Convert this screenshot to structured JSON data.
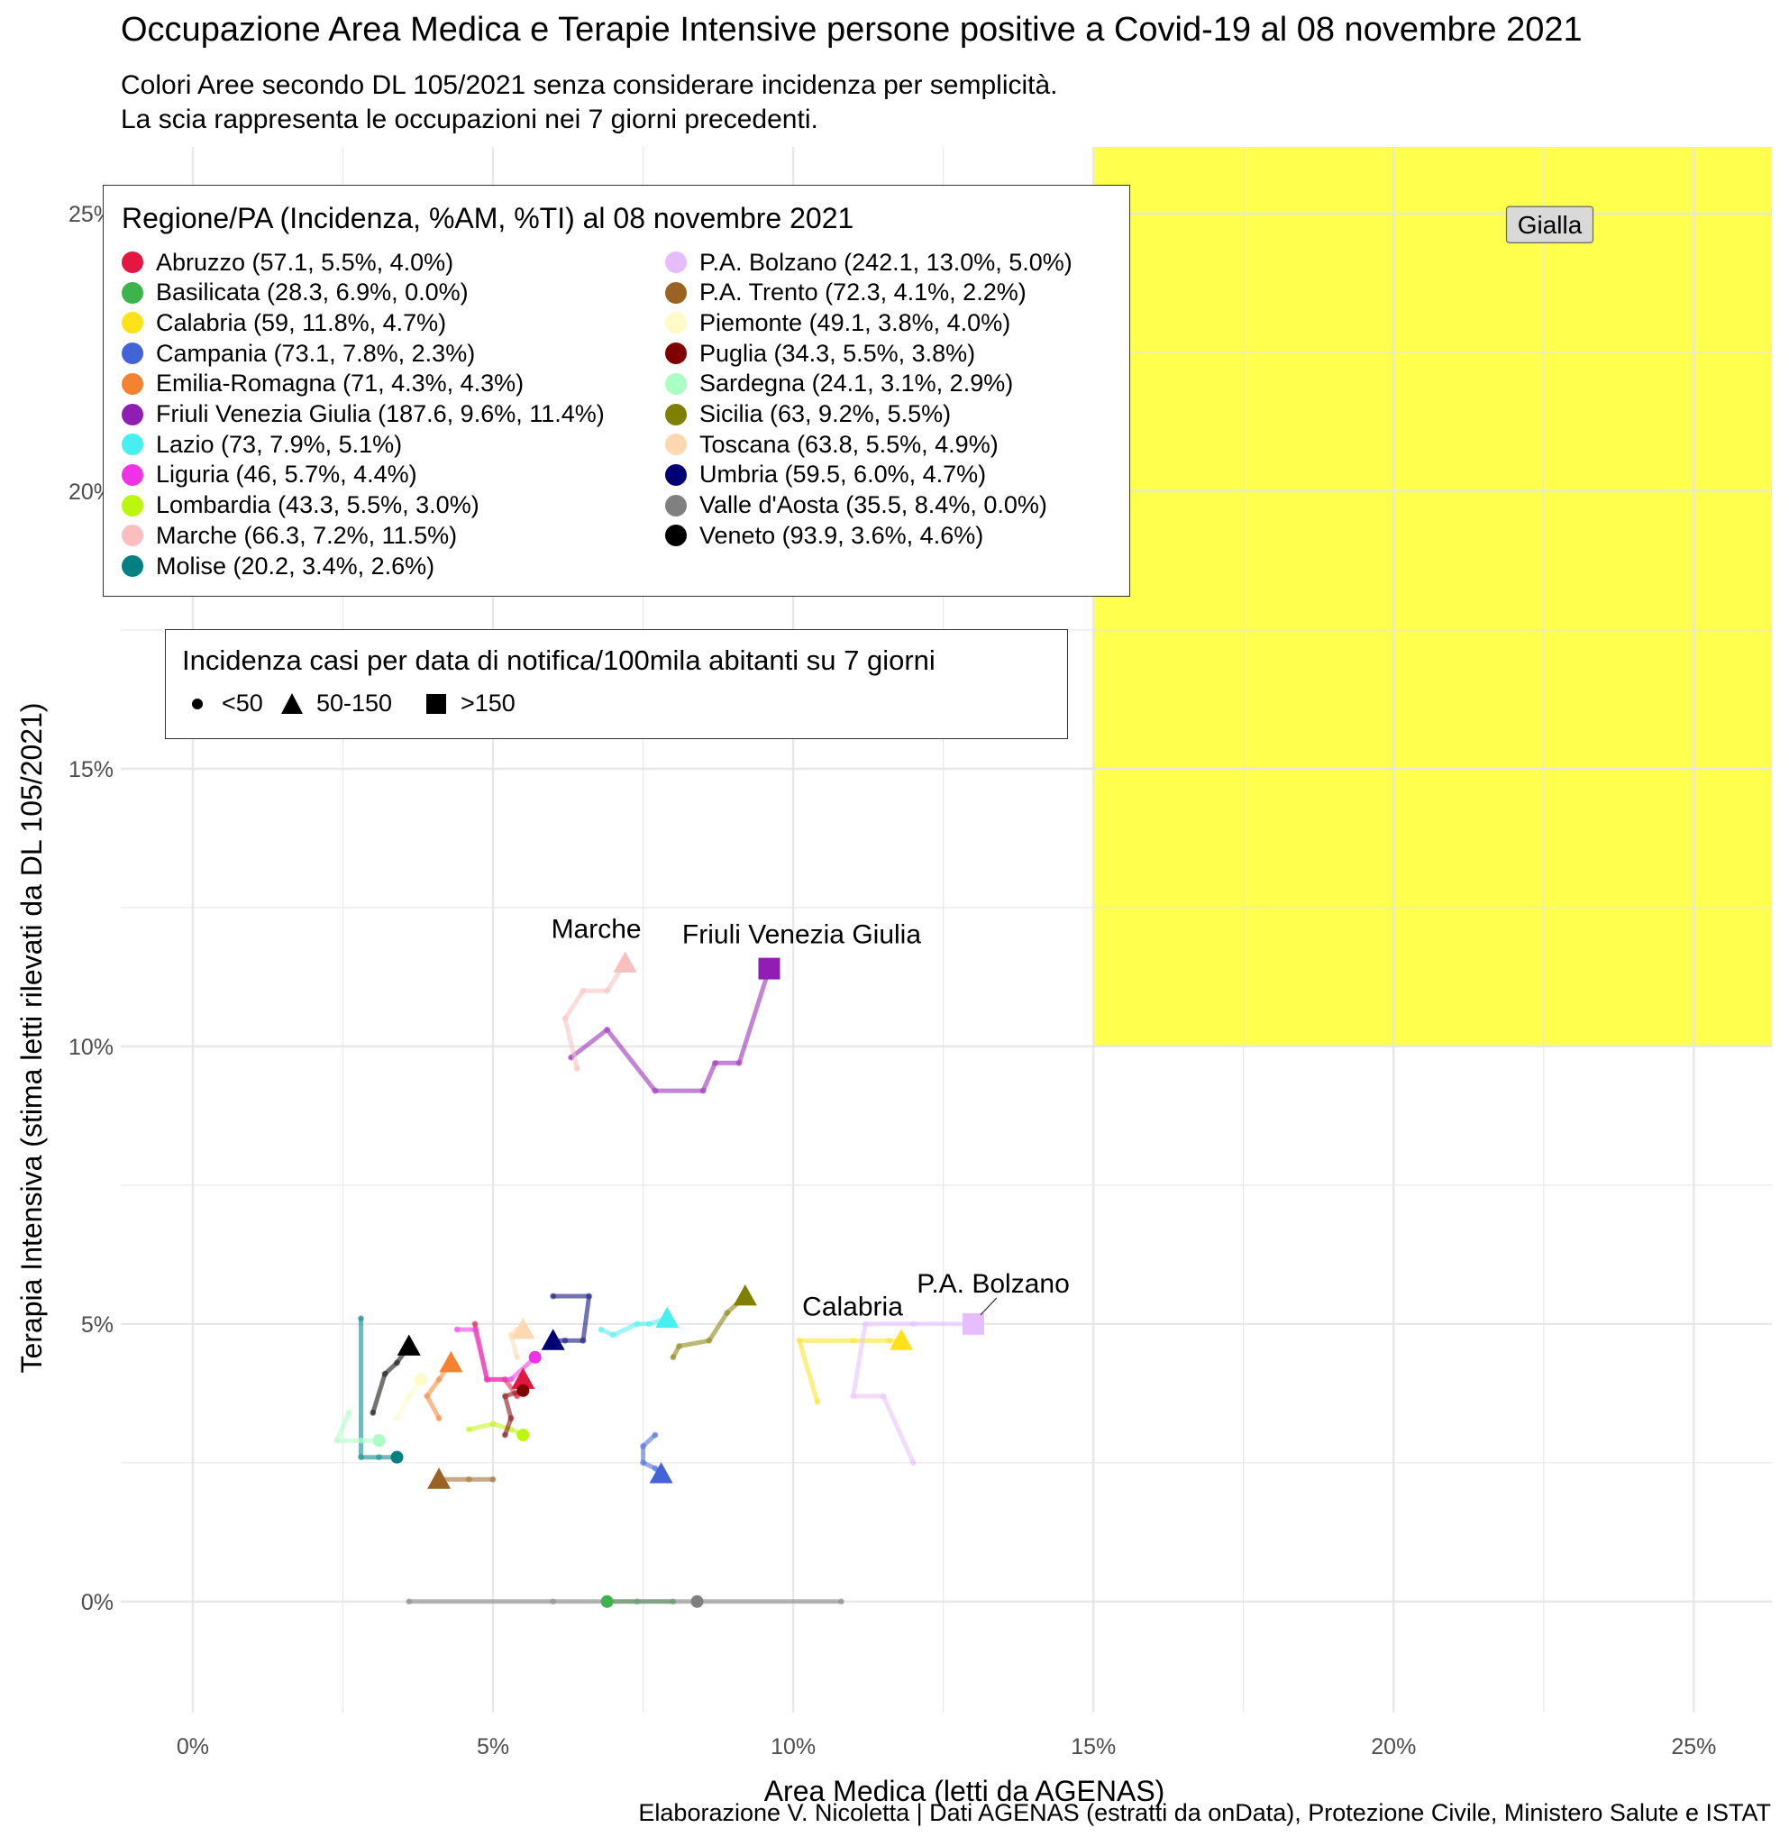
{
  "title": "Occupazione Area Medica e Terapie Intensive persone positive a Covid-19 al 08 novembre 2021",
  "subtitle_lines": [
    "Colori Aree secondo DL 105/2021 senza considerare incidenza per semplicità.",
    "La scia rappresenta le occupazioni nei 7 giorni precedenti."
  ],
  "caption": "Elaborazione V. Nicoletta | Dati AGENAS (estratti da onData), Protezione Civile, Ministero Salute e ISTAT",
  "colors": {
    "zone_yellow": "#FFFF4D",
    "grid": "#E6E6E6"
  },
  "chart_data": {
    "type": "scatter",
    "xlabel": "Area Medica (letti da AGENAS)",
    "ylabel": "Terapia Intensiva (stima letti rilevati da DL 105/2021)",
    "xlim": [
      -1.2,
      26.3
    ],
    "ylim": [
      -2.0,
      26.2
    ],
    "x_ticks": [
      0,
      5,
      10,
      15,
      20,
      25
    ],
    "y_ticks": [
      0,
      5,
      10,
      15,
      20,
      25
    ],
    "x_tick_labels": [
      "0%",
      "5%",
      "10%",
      "15%",
      "20%",
      "25%"
    ],
    "y_tick_labels": [
      "0%",
      "5%",
      "10%",
      "15%",
      "20%",
      "25%"
    ],
    "zone": {
      "label": "Gialla",
      "x_from": 15,
      "y_from": 10
    },
    "legend_title": "Regione/PA (Incidenza, %AM, %TI) al 08 novembre 2021",
    "shape_legend_title": "Incidenza casi per data di notifica/100mila abitanti su 7 giorni",
    "shape_legend": [
      {
        "shape": "circle",
        "label": "<50"
      },
      {
        "shape": "triangle",
        "label": "50-150"
      },
      {
        "shape": "square",
        "label": ">150"
      }
    ],
    "series": [
      {
        "name": "Abruzzo",
        "legend": "Abruzzo (57.1, 5.5%, 4.0%)",
        "color": "#E3173F",
        "shape": "triangle",
        "x": 5.5,
        "y": 4.0,
        "trail": [
          [
            4.7,
            5.0
          ],
          [
            4.9,
            4.0
          ],
          [
            5.2,
            4.0
          ],
          [
            5.4,
            3.7
          ],
          [
            5.5,
            4.0
          ]
        ]
      },
      {
        "name": "Basilicata",
        "legend": "Basilicata (28.3, 6.9%, 0.0%)",
        "color": "#3CB44B",
        "shape": "circle",
        "x": 6.9,
        "y": 0.0,
        "trail": [
          [
            8.0,
            0.0
          ],
          [
            7.4,
            0.0
          ],
          [
            6.9,
            0.0
          ]
        ]
      },
      {
        "name": "Calabria",
        "legend": "Calabria (59, 11.8%, 4.7%)",
        "color": "#FFE119",
        "shape": "triangle",
        "x": 11.8,
        "y": 4.7,
        "trail": [
          [
            10.4,
            3.6
          ],
          [
            10.1,
            4.7
          ],
          [
            11.0,
            4.7
          ],
          [
            11.6,
            4.7
          ],
          [
            11.8,
            4.7
          ]
        ]
      },
      {
        "name": "Campania",
        "legend": "Campania (73.1, 7.8%, 2.3%)",
        "color": "#4363D8",
        "shape": "triangle",
        "x": 7.8,
        "y": 2.3,
        "trail": [
          [
            7.7,
            3.0
          ],
          [
            7.5,
            2.8
          ],
          [
            7.5,
            2.5
          ],
          [
            7.7,
            2.4
          ],
          [
            7.8,
            2.3
          ]
        ]
      },
      {
        "name": "Emilia-Romagna",
        "legend": "Emilia-Romagna (71, 4.3%, 4.3%)",
        "color": "#F58231",
        "shape": "triangle",
        "x": 4.3,
        "y": 4.3,
        "trail": [
          [
            4.1,
            3.3
          ],
          [
            3.9,
            3.7
          ],
          [
            4.1,
            4.0
          ],
          [
            4.3,
            4.3
          ]
        ]
      },
      {
        "name": "Friuli Venezia Giulia",
        "legend": "Friuli Venezia Giulia (187.6, 9.6%, 11.4%)",
        "color": "#911EB4",
        "shape": "square",
        "x": 9.6,
        "y": 11.4,
        "trail": [
          [
            6.3,
            9.8
          ],
          [
            6.9,
            10.3
          ],
          [
            7.7,
            9.2
          ],
          [
            8.5,
            9.2
          ],
          [
            8.7,
            9.7
          ],
          [
            9.1,
            9.7
          ],
          [
            9.6,
            11.4
          ]
        ]
      },
      {
        "name": "Lazio",
        "legend": "Lazio (73, 7.9%, 5.1%)",
        "color": "#46F0F0",
        "shape": "triangle",
        "x": 7.9,
        "y": 5.1,
        "trail": [
          [
            6.8,
            4.9
          ],
          [
            7.0,
            4.8
          ],
          [
            7.4,
            5.0
          ],
          [
            7.6,
            5.0
          ],
          [
            7.9,
            5.1
          ]
        ]
      },
      {
        "name": "Liguria",
        "legend": "Liguria (46, 5.7%, 4.4%)",
        "color": "#F032E6",
        "shape": "circle",
        "x": 5.7,
        "y": 4.4,
        "trail": [
          [
            4.4,
            4.9
          ],
          [
            4.7,
            4.9
          ],
          [
            4.9,
            4.0
          ],
          [
            5.3,
            4.0
          ],
          [
            5.7,
            4.4
          ]
        ]
      },
      {
        "name": "Lombardia",
        "legend": "Lombardia (43.3, 5.5%, 3.0%)",
        "color": "#BCF60C",
        "shape": "circle",
        "x": 5.5,
        "y": 3.0,
        "trail": [
          [
            4.6,
            3.1
          ],
          [
            5.0,
            3.2
          ],
          [
            5.3,
            3.1
          ],
          [
            5.5,
            3.0
          ]
        ]
      },
      {
        "name": "Marche",
        "legend": "Marche (66.3, 7.2%, 11.5%)",
        "color": "#FABEBE",
        "shape": "triangle",
        "x": 7.2,
        "y": 11.5,
        "trail": [
          [
            6.4,
            9.6
          ],
          [
            6.2,
            10.5
          ],
          [
            6.5,
            11.0
          ],
          [
            6.9,
            11.0
          ],
          [
            7.2,
            11.5
          ]
        ]
      },
      {
        "name": "Molise",
        "legend": "Molise (20.2, 3.4%, 2.6%)",
        "color": "#008080",
        "shape": "circle",
        "x": 3.4,
        "y": 2.6,
        "trail": [
          [
            2.8,
            5.1
          ],
          [
            2.8,
            2.6
          ],
          [
            3.1,
            2.6
          ],
          [
            3.4,
            2.6
          ]
        ]
      },
      {
        "name": "P.A. Bolzano",
        "legend": "P.A. Bolzano (242.1, 13.0%, 5.0%)",
        "color": "#E6BEFF",
        "shape": "square",
        "x": 13.0,
        "y": 5.0,
        "trail": [
          [
            12.0,
            2.5
          ],
          [
            11.5,
            3.7
          ],
          [
            11.0,
            3.7
          ],
          [
            11.2,
            5.0
          ],
          [
            12.0,
            5.0
          ],
          [
            13.0,
            5.0
          ]
        ]
      },
      {
        "name": "P.A. Trento",
        "legend": "P.A. Trento (72.3, 4.1%, 2.2%)",
        "color": "#9A6324",
        "shape": "triangle",
        "x": 4.1,
        "y": 2.2,
        "trail": [
          [
            5.0,
            2.2
          ],
          [
            4.6,
            2.2
          ],
          [
            4.1,
            2.2
          ]
        ]
      },
      {
        "name": "Piemonte",
        "legend": "Piemonte (49.1, 3.8%, 4.0%)",
        "color": "#FFFAC8",
        "shape": "circle",
        "x": 3.8,
        "y": 4.0,
        "trail": [
          [
            3.4,
            3.3
          ],
          [
            3.6,
            3.7
          ],
          [
            3.8,
            4.0
          ]
        ]
      },
      {
        "name": "Puglia",
        "legend": "Puglia (34.3, 5.5%, 3.8%)",
        "color": "#800000",
        "shape": "circle",
        "x": 5.5,
        "y": 3.8,
        "trail": [
          [
            5.2,
            3.0
          ],
          [
            5.3,
            3.3
          ],
          [
            5.2,
            3.7
          ],
          [
            5.5,
            3.8
          ]
        ]
      },
      {
        "name": "Sardegna",
        "legend": "Sardegna (24.1, 3.1%, 2.9%)",
        "color": "#AAFFC3",
        "shape": "circle",
        "x": 3.1,
        "y": 2.9,
        "trail": [
          [
            2.6,
            3.4
          ],
          [
            2.4,
            2.9
          ],
          [
            2.8,
            2.9
          ],
          [
            3.1,
            2.9
          ]
        ]
      },
      {
        "name": "Sicilia",
        "legend": "Sicilia (63, 9.2%, 5.5%)",
        "color": "#808000",
        "shape": "triangle",
        "x": 9.2,
        "y": 5.5,
        "trail": [
          [
            8.0,
            4.4
          ],
          [
            8.1,
            4.6
          ],
          [
            8.6,
            4.7
          ],
          [
            8.9,
            5.2
          ],
          [
            9.2,
            5.5
          ]
        ]
      },
      {
        "name": "Toscana",
        "legend": "Toscana (63.8, 5.5%, 4.9%)",
        "color": "#FFD8B1",
        "shape": "triangle",
        "x": 5.5,
        "y": 4.9,
        "trail": [
          [
            5.4,
            4.4
          ],
          [
            5.3,
            4.8
          ],
          [
            5.4,
            4.9
          ],
          [
            5.5,
            4.9
          ]
        ]
      },
      {
        "name": "Umbria",
        "legend": "Umbria (59.5, 6.0%, 4.7%)",
        "color": "#000075",
        "shape": "triangle",
        "x": 6.0,
        "y": 4.7,
        "trail": [
          [
            6.0,
            5.5
          ],
          [
            6.6,
            5.5
          ],
          [
            6.5,
            4.7
          ],
          [
            6.2,
            4.7
          ],
          [
            6.0,
            4.7
          ]
        ]
      },
      {
        "name": "Valle d'Aosta",
        "legend": "Valle d'Aosta (35.5, 8.4%, 0.0%)",
        "color": "#808080",
        "shape": "circle",
        "x": 8.4,
        "y": 0.0,
        "trail": [
          [
            3.6,
            0.0
          ],
          [
            6.0,
            0.0
          ],
          [
            10.8,
            0.0
          ],
          [
            8.4,
            0.0
          ]
        ]
      },
      {
        "name": "Veneto",
        "legend": "Veneto (93.9, 3.6%, 4.6%)",
        "color": "#000000",
        "shape": "triangle",
        "x": 3.6,
        "y": 4.6,
        "trail": [
          [
            3.0,
            3.4
          ],
          [
            3.2,
            4.1
          ],
          [
            3.4,
            4.3
          ],
          [
            3.6,
            4.6
          ]
        ]
      }
    ],
    "point_labels": [
      "Marche",
      "Friuli Venezia Giulia",
      "Calabria",
      "P.A. Bolzano"
    ]
  }
}
